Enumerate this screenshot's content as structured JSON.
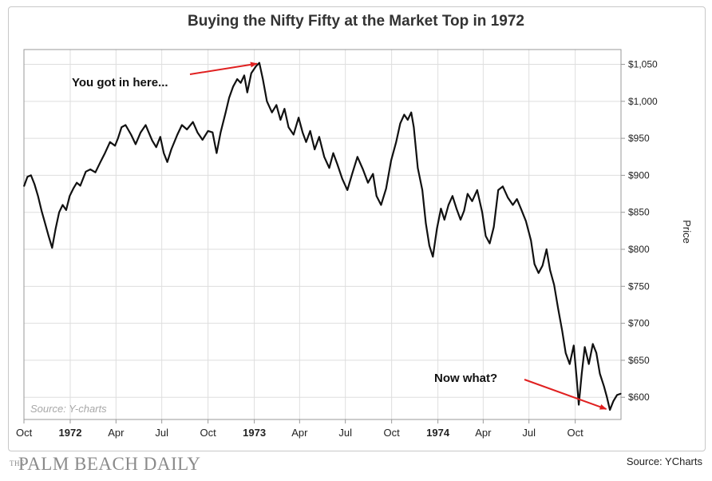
{
  "chart_data": {
    "type": "line",
    "title": "Buying the Nifty Fifty at the Market Top in 1972",
    "ylabel": "Price",
    "ylim": [
      570,
      1070
    ],
    "y_ticks": [
      "$600",
      "$650",
      "$700",
      "$750",
      "$800",
      "$850",
      "$900",
      "$950",
      "$1,000",
      "$1,050"
    ],
    "y_tick_values": [
      600,
      650,
      700,
      750,
      800,
      850,
      900,
      950,
      1000,
      1050
    ],
    "x_ticks": [
      "Oct",
      "1972",
      "Apr",
      "Jul",
      "Oct",
      "1973",
      "Apr",
      "Jul",
      "Oct",
      "1974",
      "Apr",
      "Jul",
      "Oct"
    ],
    "x_tick_dates": [
      "1971-10-01",
      "1972-01-01",
      "1972-04-01",
      "1972-07-01",
      "1972-10-01",
      "1973-01-01",
      "1973-04-01",
      "1973-07-01",
      "1973-10-01",
      "1974-01-01",
      "1974-04-01",
      "1974-07-01",
      "1974-10-01"
    ],
    "xlim": [
      "1971-10-01",
      "1974-12-31"
    ],
    "grid": true,
    "line_color": "#111111",
    "annotation_color": "#e02020",
    "series": [
      {
        "points": [
          [
            "1971-10-01",
            885
          ],
          [
            "1971-10-08",
            898
          ],
          [
            "1971-10-15",
            900
          ],
          [
            "1971-10-22",
            888
          ],
          [
            "1971-10-29",
            872
          ],
          [
            "1971-11-05",
            852
          ],
          [
            "1971-11-12",
            835
          ],
          [
            "1971-11-19",
            818
          ],
          [
            "1971-11-26",
            802
          ],
          [
            "1971-12-03",
            828
          ],
          [
            "1971-12-10",
            850
          ],
          [
            "1971-12-17",
            860
          ],
          [
            "1971-12-24",
            853
          ],
          [
            "1971-12-31",
            872
          ],
          [
            "1972-01-07",
            882
          ],
          [
            "1972-01-14",
            890
          ],
          [
            "1972-01-21",
            886
          ],
          [
            "1972-02-01",
            905
          ],
          [
            "1972-02-10",
            908
          ],
          [
            "1972-02-20",
            904
          ],
          [
            "1972-03-01",
            918
          ],
          [
            "1972-03-10",
            930
          ],
          [
            "1972-03-20",
            945
          ],
          [
            "1972-03-30",
            940
          ],
          [
            "1972-04-05",
            950
          ],
          [
            "1972-04-12",
            965
          ],
          [
            "1972-04-20",
            968
          ],
          [
            "1972-05-01",
            955
          ],
          [
            "1972-05-10",
            942
          ],
          [
            "1972-05-20",
            958
          ],
          [
            "1972-05-30",
            968
          ],
          [
            "1972-06-05",
            958
          ],
          [
            "1972-06-12",
            947
          ],
          [
            "1972-06-20",
            938
          ],
          [
            "1972-06-28",
            952
          ],
          [
            "1972-07-05",
            930
          ],
          [
            "1972-07-12",
            918
          ],
          [
            "1972-07-20",
            935
          ],
          [
            "1972-08-01",
            955
          ],
          [
            "1972-08-10",
            968
          ],
          [
            "1972-08-20",
            962
          ],
          [
            "1972-09-01",
            972
          ],
          [
            "1972-09-10",
            958
          ],
          [
            "1972-09-20",
            948
          ],
          [
            "1972-10-01",
            960
          ],
          [
            "1972-10-10",
            958
          ],
          [
            "1972-10-18",
            930
          ],
          [
            "1972-10-26",
            958
          ],
          [
            "1972-11-05",
            985
          ],
          [
            "1972-11-12",
            1005
          ],
          [
            "1972-11-20",
            1020
          ],
          [
            "1972-11-28",
            1030
          ],
          [
            "1972-12-05",
            1025
          ],
          [
            "1972-12-12",
            1035
          ],
          [
            "1972-12-18",
            1012
          ],
          [
            "1972-12-26",
            1038
          ],
          [
            "1973-01-05",
            1048
          ],
          [
            "1973-01-11",
            1052
          ],
          [
            "1973-01-18",
            1030
          ],
          [
            "1973-01-26",
            1000
          ],
          [
            "1973-02-05",
            985
          ],
          [
            "1973-02-14",
            995
          ],
          [
            "1973-02-22",
            975
          ],
          [
            "1973-03-02",
            990
          ],
          [
            "1973-03-10",
            965
          ],
          [
            "1973-03-20",
            955
          ],
          [
            "1973-03-30",
            978
          ],
          [
            "1973-04-07",
            958
          ],
          [
            "1973-04-14",
            945
          ],
          [
            "1973-04-22",
            960
          ],
          [
            "1973-05-01",
            935
          ],
          [
            "1973-05-10",
            952
          ],
          [
            "1973-05-20",
            925
          ],
          [
            "1973-05-30",
            910
          ],
          [
            "1973-06-07",
            930
          ],
          [
            "1973-06-15",
            915
          ],
          [
            "1973-06-25",
            895
          ],
          [
            "1973-07-05",
            880
          ],
          [
            "1973-07-15",
            903
          ],
          [
            "1973-07-25",
            925
          ],
          [
            "1973-08-05",
            908
          ],
          [
            "1973-08-15",
            890
          ],
          [
            "1973-08-25",
            902
          ],
          [
            "1973-09-01",
            872
          ],
          [
            "1973-09-10",
            860
          ],
          [
            "1973-09-20",
            882
          ],
          [
            "1973-09-30",
            920
          ],
          [
            "1973-10-10",
            945
          ],
          [
            "1973-10-18",
            970
          ],
          [
            "1973-10-26",
            982
          ],
          [
            "1973-11-02",
            975
          ],
          [
            "1973-11-09",
            985
          ],
          [
            "1973-11-14",
            965
          ],
          [
            "1973-11-22",
            910
          ],
          [
            "1973-12-01",
            880
          ],
          [
            "1973-12-08",
            835
          ],
          [
            "1973-12-15",
            805
          ],
          [
            "1973-12-22",
            790
          ],
          [
            "1973-12-30",
            828
          ],
          [
            "1974-01-07",
            855
          ],
          [
            "1974-01-14",
            840
          ],
          [
            "1974-01-22",
            860
          ],
          [
            "1974-01-30",
            872
          ],
          [
            "1974-02-07",
            855
          ],
          [
            "1974-02-15",
            840
          ],
          [
            "1974-02-22",
            852
          ],
          [
            "1974-03-01",
            875
          ],
          [
            "1974-03-10",
            865
          ],
          [
            "1974-03-20",
            880
          ],
          [
            "1974-03-30",
            850
          ],
          [
            "1974-04-06",
            818
          ],
          [
            "1974-04-14",
            808
          ],
          [
            "1974-04-22",
            830
          ],
          [
            "1974-05-01",
            880
          ],
          [
            "1974-05-10",
            885
          ],
          [
            "1974-05-20",
            870
          ],
          [
            "1974-05-30",
            860
          ],
          [
            "1974-06-07",
            868
          ],
          [
            "1974-06-15",
            855
          ],
          [
            "1974-06-25",
            838
          ],
          [
            "1974-07-05",
            812
          ],
          [
            "1974-07-12",
            780
          ],
          [
            "1974-07-20",
            768
          ],
          [
            "1974-07-28",
            778
          ],
          [
            "1974-08-05",
            800
          ],
          [
            "1974-08-12",
            772
          ],
          [
            "1974-08-20",
            752
          ],
          [
            "1974-08-28",
            720
          ],
          [
            "1974-09-05",
            690
          ],
          [
            "1974-09-12",
            660
          ],
          [
            "1974-09-20",
            645
          ],
          [
            "1974-09-28",
            670
          ],
          [
            "1974-10-04",
            625
          ],
          [
            "1974-10-08",
            590
          ],
          [
            "1974-10-14",
            632
          ],
          [
            "1974-10-20",
            668
          ],
          [
            "1974-10-28",
            645
          ],
          [
            "1974-11-05",
            672
          ],
          [
            "1974-11-12",
            660
          ],
          [
            "1974-11-19",
            632
          ],
          [
            "1974-11-27",
            615
          ],
          [
            "1974-12-03",
            600
          ],
          [
            "1974-12-09",
            583
          ],
          [
            "1974-12-16",
            595
          ],
          [
            "1974-12-23",
            603
          ],
          [
            "1974-12-31",
            605
          ]
        ]
      }
    ],
    "annotations": [
      {
        "text": "You got in here...",
        "arrow_to": [
          "1973-01-11",
          1052
        ]
      },
      {
        "text": "Now what?",
        "arrow_to": [
          "1974-12-08",
          583
        ]
      }
    ],
    "watermark": "Source: Y-charts"
  },
  "footer": {
    "brand_small": "THE",
    "brand": "PALM BEACH DAILY",
    "source": "Source: YCharts"
  }
}
